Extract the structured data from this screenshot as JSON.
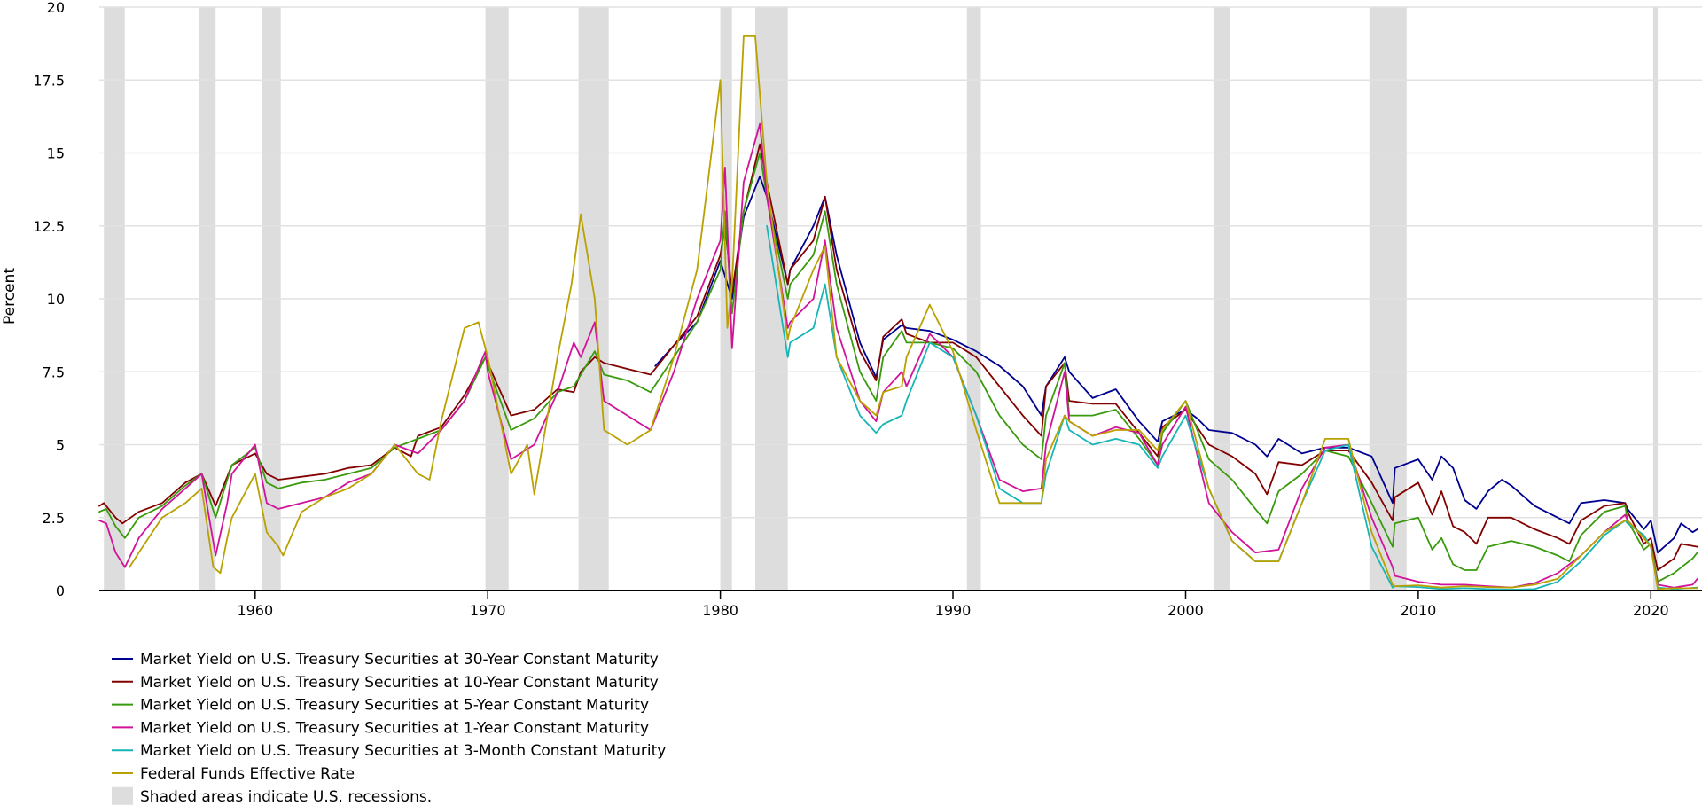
{
  "chart_data": {
    "type": "line",
    "title": "",
    "xlabel": "",
    "ylabel": "Percent",
    "xlim": [
      1953.3,
      2022.2
    ],
    "ylim": [
      0,
      20
    ],
    "grid": true,
    "legend_position": "bottom-left",
    "y_ticks": [
      {
        "value": 0,
        "label": "0"
      },
      {
        "value": 2.5,
        "label": "2.5"
      },
      {
        "value": 5,
        "label": "5"
      },
      {
        "value": 7.5,
        "label": "7.5"
      },
      {
        "value": 10,
        "label": "10"
      },
      {
        "value": 12.5,
        "label": "12.5"
      },
      {
        "value": 15,
        "label": "15"
      },
      {
        "value": 17.5,
        "label": "17.5"
      },
      {
        "value": 20,
        "label": "20"
      }
    ],
    "x_ticks": [
      {
        "value": 1960,
        "label": "1960"
      },
      {
        "value": 1970,
        "label": "1970"
      },
      {
        "value": 1980,
        "label": "1980"
      },
      {
        "value": 1990,
        "label": "1990"
      },
      {
        "value": 2000,
        "label": "2000"
      },
      {
        "value": 2010,
        "label": "2010"
      },
      {
        "value": 2020,
        "label": "2020"
      }
    ],
    "recessions": [
      [
        1953.5,
        1954.4
      ],
      [
        1957.6,
        1958.3
      ],
      [
        1960.3,
        1961.1
      ],
      [
        1969.9,
        1970.9
      ],
      [
        1973.9,
        1975.2
      ],
      [
        1980.0,
        1980.5
      ],
      [
        1981.5,
        1982.9
      ],
      [
        1990.6,
        1991.2
      ],
      [
        2001.2,
        2001.9
      ],
      [
        2007.9,
        2009.5
      ],
      [
        2020.1,
        2020.3
      ]
    ],
    "recession_legend": "Shaded areas indicate U.S. recessions.",
    "recession_color": "#dddddd",
    "series": [
      {
        "name": "Market Yield on U.S. Treasury Securities at 30-Year Constant Maturity",
        "color": "#000090",
        "x": [
          1977.2,
          1978,
          1979,
          1980,
          1980.5,
          1981,
          1981.7,
          1982,
          1982.9,
          1983,
          1984,
          1984.5,
          1985,
          1986,
          1986.7,
          1987,
          1987.8,
          1988,
          1989,
          1990,
          1991,
          1992,
          1993,
          1993.8,
          1994,
          1994.8,
          1995,
          1996,
          1997,
          1998,
          1998.8,
          1999,
          2000,
          2000.5,
          2001,
          2002,
          2003,
          2003.5,
          2004,
          2005,
          2006,
          2007,
          2008,
          2008.9,
          2009,
          2010,
          2010.6,
          2011,
          2011.5,
          2012,
          2012.5,
          2013,
          2013.6,
          2014,
          2015,
          2016,
          2016.5,
          2017,
          2018,
          2018.9,
          2019,
          2019.7,
          2020,
          2020.3,
          2021,
          2021.3,
          2021.8,
          2022
        ],
        "values": [
          7.7,
          8.4,
          9.2,
          11.3,
          10.0,
          12.8,
          14.2,
          13.5,
          10.5,
          11.0,
          12.5,
          13.5,
          11.5,
          8.5,
          7.3,
          8.6,
          9.1,
          9.0,
          8.9,
          8.6,
          8.2,
          7.7,
          7.0,
          6.0,
          7.0,
          8.0,
          7.5,
          6.6,
          6.9,
          5.8,
          5.1,
          5.8,
          6.2,
          5.9,
          5.5,
          5.4,
          5.0,
          4.6,
          5.2,
          4.7,
          4.9,
          4.9,
          4.6,
          3.0,
          4.2,
          4.5,
          3.8,
          4.6,
          4.2,
          3.1,
          2.8,
          3.4,
          3.8,
          3.6,
          2.9,
          2.5,
          2.3,
          3.0,
          3.1,
          3.0,
          2.8,
          2.1,
          2.4,
          1.3,
          1.8,
          2.3,
          2.0,
          2.1
        ]
      },
      {
        "name": "Market Yield on U.S. Treasury Securities at 10-Year Constant Maturity",
        "color": "#820000",
        "x": [
          1953.3,
          1953.5,
          1954,
          1954.3,
          1955,
          1956,
          1957,
          1957.7,
          1958.3,
          1958.8,
          1959,
          1960,
          1960.5,
          1961,
          1962,
          1963,
          1964,
          1965,
          1966,
          1966.7,
          1967,
          1968,
          1969,
          1969.9,
          1970,
          1971,
          1972,
          1973,
          1973.7,
          1974,
          1974.6,
          1975,
          1976,
          1977,
          1978,
          1979,
          1980,
          1980.2,
          1980.5,
          1981,
          1981.7,
          1982,
          1982.9,
          1983,
          1984,
          1984.5,
          1985,
          1986,
          1986.7,
          1987,
          1987.8,
          1988,
          1989,
          1990,
          1991,
          1992,
          1993,
          1993.8,
          1994,
          1994.8,
          1995,
          1996,
          1997,
          1998,
          1998.8,
          1999,
          2000,
          2001,
          2002,
          2003,
          2003.5,
          2004,
          2005,
          2006,
          2007,
          2008,
          2008.9,
          2009,
          2010,
          2010.6,
          2011,
          2011.5,
          2012,
          2012.5,
          2013,
          2014,
          2015,
          2016,
          2016.5,
          2017,
          2018,
          2018.9,
          2019,
          2019.7,
          2020,
          2020.3,
          2021,
          2021.3,
          2022
        ],
        "values": [
          2.9,
          3.0,
          2.5,
          2.3,
          2.7,
          3.0,
          3.7,
          4.0,
          2.9,
          3.9,
          4.3,
          4.7,
          4.0,
          3.8,
          3.9,
          4.0,
          4.2,
          4.3,
          4.9,
          4.6,
          5.3,
          5.6,
          6.7,
          8.0,
          7.8,
          6.0,
          6.2,
          6.9,
          6.8,
          7.5,
          8.0,
          7.8,
          7.6,
          7.4,
          8.4,
          9.4,
          11.5,
          12.5,
          10.2,
          13.0,
          15.3,
          14.0,
          10.5,
          11.0,
          12.0,
          13.5,
          11.0,
          8.2,
          7.2,
          8.7,
          9.3,
          8.8,
          8.5,
          8.5,
          8.0,
          7.0,
          6.0,
          5.3,
          7.0,
          7.8,
          6.5,
          6.4,
          6.4,
          5.4,
          4.6,
          5.6,
          6.2,
          5.0,
          4.6,
          4.0,
          3.3,
          4.4,
          4.3,
          4.8,
          4.8,
          3.7,
          2.4,
          3.2,
          3.7,
          2.6,
          3.4,
          2.2,
          2.0,
          1.6,
          2.5,
          2.5,
          2.1,
          1.8,
          1.6,
          2.4,
          2.9,
          3.0,
          2.7,
          1.6,
          1.8,
          0.7,
          1.1,
          1.6,
          1.5
        ]
      },
      {
        "name": "Market Yield on U.S. Treasury Securities at 5-Year Constant Maturity",
        "color": "#3a9a0e",
        "x": [
          1953.3,
          1953.6,
          1954,
          1954.4,
          1955,
          1956,
          1957,
          1957.7,
          1958.3,
          1958.8,
          1959,
          1960,
          1960.5,
          1961,
          1962,
          1963,
          1964,
          1965,
          1966,
          1967,
          1968,
          1969,
          1969.9,
          1970,
          1971,
          1972,
          1973,
          1973.7,
          1974,
          1974.6,
          1975,
          1976,
          1977,
          1978,
          1979,
          1980,
          1980.2,
          1980.5,
          1981,
          1981.7,
          1982,
          1982.9,
          1983,
          1984,
          1984.5,
          1985,
          1986,
          1986.7,
          1987,
          1987.8,
          1988,
          1989,
          1990,
          1991,
          1992,
          1993,
          1993.8,
          1994,
          1994.8,
          1995,
          1996,
          1997,
          1998,
          1998.8,
          1999,
          2000,
          2001,
          2002,
          2003,
          2003.5,
          2004,
          2005,
          2006,
          2007,
          2008,
          2008.9,
          2009,
          2010,
          2010.6,
          2011,
          2011.5,
          2012,
          2012.5,
          2013,
          2014,
          2015,
          2016,
          2016.5,
          2017,
          2018,
          2018.9,
          2019,
          2019.7,
          2020,
          2020.3,
          2021,
          2021.8,
          2022
        ],
        "values": [
          2.7,
          2.8,
          2.2,
          1.8,
          2.5,
          2.9,
          3.6,
          4.0,
          2.5,
          3.8,
          4.3,
          4.9,
          3.7,
          3.5,
          3.7,
          3.8,
          4.0,
          4.2,
          4.9,
          5.2,
          5.5,
          6.5,
          8.0,
          7.7,
          5.5,
          5.9,
          6.8,
          7.0,
          7.4,
          8.2,
          7.4,
          7.2,
          6.8,
          8.0,
          9.2,
          11.0,
          13.0,
          9.5,
          13.0,
          15.0,
          13.5,
          10.0,
          10.5,
          11.5,
          13.0,
          10.5,
          7.5,
          6.5,
          8.0,
          8.9,
          8.5,
          8.5,
          8.3,
          7.5,
          6.0,
          5.0,
          4.5,
          6.0,
          7.8,
          6.0,
          6.0,
          6.2,
          5.2,
          4.3,
          5.4,
          6.5,
          4.5,
          3.8,
          2.8,
          2.3,
          3.4,
          4.0,
          4.8,
          4.6,
          3.0,
          1.5,
          2.3,
          2.5,
          1.4,
          1.8,
          0.9,
          0.7,
          0.7,
          1.5,
          1.7,
          1.5,
          1.2,
          1.0,
          1.9,
          2.7,
          2.9,
          2.4,
          1.4,
          1.6,
          0.3,
          0.6,
          1.1,
          1.3
        ]
      },
      {
        "name": "Market Yield on U.S. Treasury Securities at 1-Year Constant Maturity",
        "color": "#d1139a",
        "x": [
          1953.3,
          1953.6,
          1954,
          1954.4,
          1955,
          1956,
          1957,
          1957.7,
          1958.3,
          1958.8,
          1959,
          1960,
          1960.5,
          1961,
          1962,
          1963,
          1964,
          1965,
          1966,
          1967,
          1968,
          1969,
          1969.9,
          1970,
          1971,
          1972,
          1973,
          1973.7,
          1974,
          1974.6,
          1975,
          1976,
          1977,
          1978,
          1979,
          1980,
          1980.2,
          1980.5,
          1981,
          1981.7,
          1982,
          1982.9,
          1983,
          1984,
          1984.5,
          1985,
          1986,
          1986.7,
          1987,
          1987.8,
          1988,
          1989,
          1990,
          1991,
          1992,
          1993,
          1993.8,
          1994,
          1994.8,
          1995,
          1996,
          1997,
          1998,
          1998.8,
          1999,
          2000,
          2001,
          2002,
          2003,
          2004,
          2005,
          2006,
          2007,
          2008,
          2008.9,
          2009,
          2010,
          2011,
          2012,
          2013,
          2014,
          2015,
          2016,
          2017,
          2018,
          2018.9,
          2019,
          2019.7,
          2020,
          2020.3,
          2021,
          2021.8,
          2022
        ],
        "values": [
          2.4,
          2.3,
          1.3,
          0.8,
          1.8,
          2.8,
          3.5,
          4.0,
          1.2,
          3.0,
          4.0,
          5.0,
          3.0,
          2.8,
          3.0,
          3.2,
          3.7,
          4.0,
          5.0,
          4.7,
          5.5,
          6.5,
          8.2,
          7.5,
          4.5,
          5.0,
          6.8,
          8.5,
          8.0,
          9.2,
          6.5,
          6.0,
          5.5,
          7.5,
          10.0,
          12.0,
          14.5,
          8.3,
          14.0,
          16.0,
          13.5,
          9.0,
          9.2,
          10.0,
          12.0,
          9.0,
          6.5,
          5.8,
          6.8,
          7.5,
          7.0,
          8.8,
          8.0,
          6.0,
          3.8,
          3.4,
          3.5,
          5.0,
          7.5,
          5.8,
          5.3,
          5.6,
          5.4,
          4.3,
          5.0,
          6.3,
          3.0,
          2.0,
          1.3,
          1.4,
          3.5,
          4.9,
          5.0,
          2.5,
          0.8,
          0.5,
          0.3,
          0.2,
          0.2,
          0.15,
          0.1,
          0.25,
          0.6,
          1.2,
          2.0,
          2.6,
          2.4,
          1.8,
          1.5,
          0.2,
          0.1,
          0.2,
          0.4
        ]
      },
      {
        "name": "Market Yield on U.S. Treasury Securities at 3-Month Constant Maturity",
        "color": "#17b5b5",
        "x": [
          1982,
          1982.9,
          1983,
          1984,
          1984.5,
          1985,
          1986,
          1986.7,
          1987,
          1987.8,
          1988,
          1989,
          1990,
          1991,
          1992,
          1993,
          1993.8,
          1994,
          1994.8,
          1995,
          1996,
          1997,
          1998,
          1998.8,
          1999,
          2000,
          2001,
          2002,
          2003,
          2004,
          2005,
          2006,
          2007,
          2008,
          2008.9,
          2009,
          2010,
          2011,
          2012,
          2013,
          2014,
          2015,
          2016,
          2017,
          2018,
          2018.9,
          2019,
          2019.7,
          2020,
          2020.3,
          2021,
          2022
        ],
        "values": [
          12.5,
          8.0,
          8.5,
          9.0,
          10.5,
          8.0,
          6.0,
          5.4,
          5.7,
          6.0,
          6.5,
          8.5,
          8.0,
          6.0,
          3.5,
          3.0,
          3.0,
          4.0,
          6.0,
          5.5,
          5.0,
          5.2,
          5.0,
          4.2,
          4.6,
          6.0,
          3.5,
          1.7,
          1.0,
          1.0,
          3.0,
          4.8,
          5.0,
          1.5,
          0.1,
          0.15,
          0.12,
          0.05,
          0.08,
          0.05,
          0.03,
          0.05,
          0.3,
          1.0,
          1.9,
          2.4,
          2.3,
          1.9,
          1.5,
          0.1,
          0.05,
          0.1
        ]
      },
      {
        "name": "Federal Funds Effective Rate",
        "color": "#b8a100",
        "x": [
          1954.6,
          1955,
          1956,
          1957,
          1957.7,
          1958.2,
          1958.5,
          1958.8,
          1959,
          1960,
          1960.5,
          1961,
          1961.2,
          1962,
          1963,
          1964,
          1965,
          1966,
          1967,
          1967.5,
          1968,
          1969,
          1969.6,
          1970,
          1971,
          1971.7,
          1972,
          1973,
          1973.6,
          1974,
          1974.6,
          1975,
          1976,
          1977,
          1978,
          1979,
          1980,
          1980.3,
          1980.5,
          1981,
          1981.5,
          1982,
          1982.9,
          1983,
          1984,
          1984.5,
          1985,
          1986,
          1986.7,
          1987,
          1987.8,
          1988,
          1989,
          1990,
          1991,
          1992,
          1993,
          1993.8,
          1994,
          1994.8,
          1995,
          1996,
          1997,
          1998,
          1998.8,
          1999,
          2000,
          2001,
          2002,
          2003,
          2004,
          2005,
          2006,
          2007,
          2008,
          2008.9,
          2009,
          2010,
          2011,
          2012,
          2013,
          2014,
          2015,
          2016,
          2017,
          2018,
          2018.9,
          2019,
          2019.7,
          2020,
          2020.3,
          2021,
          2022
        ],
        "values": [
          0.8,
          1.3,
          2.5,
          3.0,
          3.5,
          0.8,
          0.6,
          1.8,
          2.5,
          4.0,
          2.0,
          1.5,
          1.2,
          2.7,
          3.2,
          3.5,
          4.0,
          5.0,
          4.0,
          3.8,
          5.8,
          9.0,
          9.2,
          8.0,
          4.0,
          5.0,
          3.3,
          8.0,
          10.5,
          12.9,
          10.0,
          5.5,
          5.0,
          5.5,
          8.0,
          11.0,
          17.5,
          9.0,
          10.5,
          19.0,
          19.0,
          14.0,
          8.6,
          9.0,
          11.0,
          11.8,
          8.0,
          6.5,
          6.0,
          6.8,
          7.0,
          8.0,
          9.8,
          8.2,
          5.5,
          3.0,
          3.0,
          3.0,
          4.5,
          6.0,
          5.8,
          5.3,
          5.5,
          5.5,
          4.8,
          5.5,
          6.5,
          3.5,
          1.7,
          1.0,
          1.0,
          3.0,
          5.2,
          5.2,
          2.0,
          0.2,
          0.15,
          0.18,
          0.1,
          0.15,
          0.12,
          0.1,
          0.2,
          0.4,
          1.2,
          2.0,
          2.4,
          2.4,
          1.8,
          1.5,
          0.05,
          0.08,
          0.08
        ]
      }
    ]
  }
}
